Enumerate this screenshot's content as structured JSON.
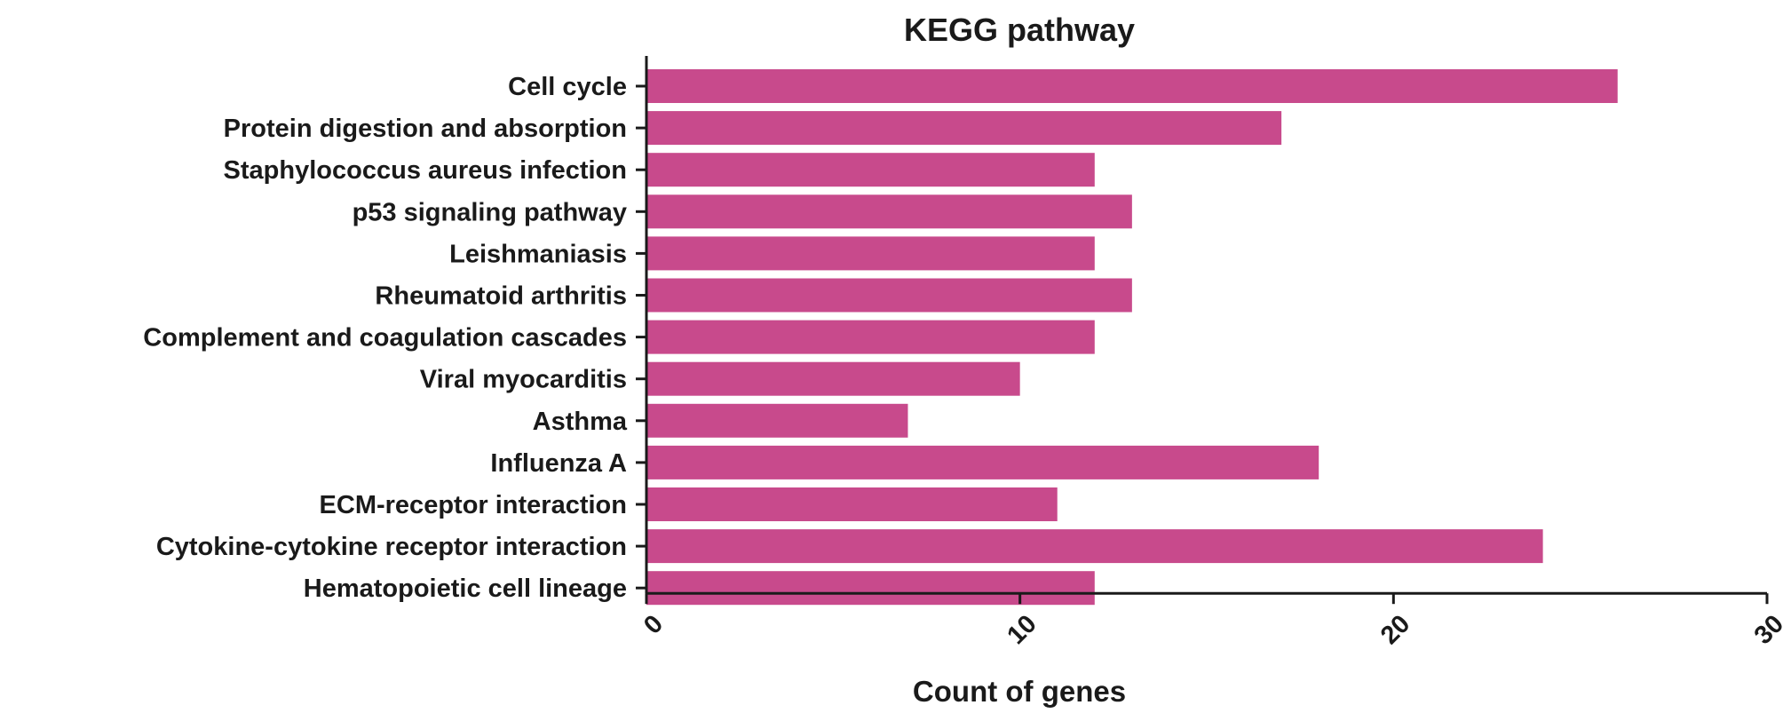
{
  "chart_data": {
    "type": "bar",
    "orientation": "horizontal",
    "title": "KEGG pathway",
    "xlabel": "Count of genes",
    "ylabel": "",
    "xlim": [
      0,
      30
    ],
    "xticks": [
      0,
      10,
      20,
      30
    ],
    "grid": false,
    "legend": "none",
    "bar_color": "#c84a8c",
    "categories": [
      "Cell cycle",
      "Protein digestion and absorption",
      "Staphylococcus aureus infection",
      "p53 signaling pathway",
      "Leishmaniasis",
      "Rheumatoid arthritis",
      "Complement and coagulation cascades",
      "Viral myocarditis",
      "Asthma",
      "Influenza A",
      "ECM-receptor interaction",
      "Cytokine-cytokine receptor interaction",
      "Hematopoietic cell lineage"
    ],
    "values": [
      26,
      17,
      12,
      13,
      12,
      13,
      12,
      10,
      7,
      18,
      11,
      24,
      12
    ]
  }
}
